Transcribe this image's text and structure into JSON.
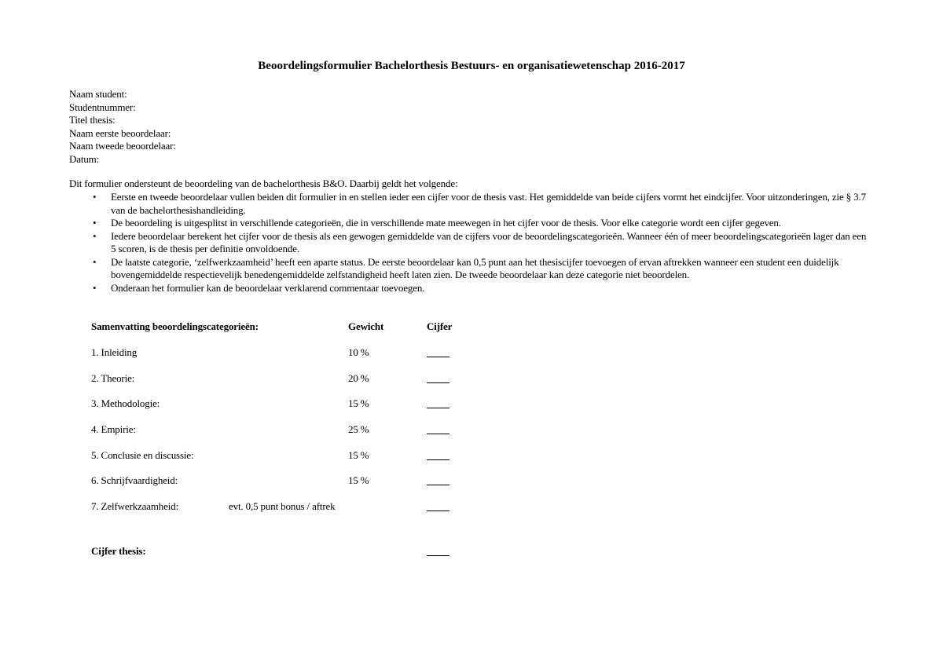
{
  "title": "Beoordelingsformulier Bachelorthesis Bestuurs- en organisatiewetenschap 2016-2017",
  "fields": [
    "Naam student:",
    "Studentnummer:",
    "Titel thesis:",
    "Naam eerste beoordelaar:",
    "Naam tweede beoordelaar:",
    "Datum:"
  ],
  "intro": "Dit formulier ondersteunt de beoordeling van de bachelorthesis B&O. Daarbij geldt het volgende:",
  "bullet_icon": "bullet-dot",
  "bullets": [
    "Eerste en tweede beoordelaar vullen beiden dit formulier in en stellen ieder een cijfer voor de thesis vast. Het gemiddelde van beide cijfers vormt het eindcijfer. Voor uitzonderingen, zie § 3.7 van de bachelorthesishandleiding.",
    "De beoordeling is uitgesplitst in verschillende categorieën, die in verschillende mate meewegen in het cijfer voor de thesis. Voor elke categorie wordt een cijfer gegeven.",
    "Iedere beoordelaar berekent het cijfer voor de thesis als een gewogen gemiddelde van de cijfers voor de beoordelingscategorieën. Wanneer één of meer beoordelingscategorieën lager dan een 5 scoren, is de thesis per definitie onvoldoende.",
    "De laatste categorie, ‘zelfwerkzaamheid’ heeft een aparte status. De eerste beoordelaar kan 0,5 punt aan het thesiscijfer toevoegen of ervan aftrekken wanneer een student een duidelijk bovengemiddelde respectievelijk benedengemiddelde zelfstandigheid heeft laten zien. De tweede beoordelaar kan deze categorie niet beoordelen.",
    "Onderaan het formulier kan de beoordelaar verklarend commentaar toevoegen."
  ],
  "summary": {
    "header": {
      "category": "Samenvatting beoordelingscategorieën:",
      "weight": "Gewicht",
      "grade": "Cijfer"
    },
    "rows": [
      {
        "label": "1. Inleiding",
        "weight": "10 %"
      },
      {
        "label": "2. Theorie:",
        "weight": "20 %"
      },
      {
        "label": "3. Methodologie:",
        "weight": "15 %"
      },
      {
        "label": "4. Empirie:",
        "weight": "25 %"
      },
      {
        "label": "5. Conclusie en discussie:",
        "weight": "15 %"
      },
      {
        "label": "6. Schrijfvaardigheid:",
        "weight": "15 %"
      }
    ],
    "extra": {
      "label": "7. Zelfwerkzaamheid:",
      "note": "evt. 0,5 punt bonus / aftrek"
    },
    "total_label": "Cijfer thesis:"
  }
}
